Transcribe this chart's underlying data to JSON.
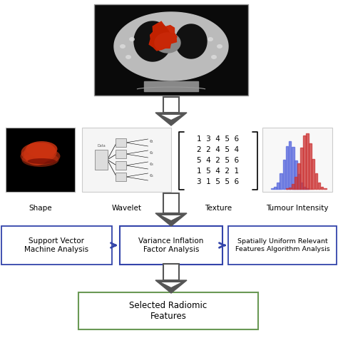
{
  "bg_color": "#f0f0f0",
  "box_color_vif": "#3344aa",
  "box_color_svm": "#3344aa",
  "box_color_surfa": "#3344aa",
  "box_color_selected": "#6a9955",
  "horiz_arrow_color": "#3344aa",
  "text_vif": "Variance Inflation\nFactor Analysis",
  "text_svm": "Support Vector\nMachine Analysis",
  "text_surfa": "Spatially Uniform Relevant\nFeatures Algorithm Analysis",
  "text_selected": "Selected Radiomic\nFeatures",
  "matrix_rows": [
    "1  3  4  5  6",
    "2  2  4  5  4",
    "5  4  2  5  6",
    "1  5  4  2  1",
    "3  1  5  5  6"
  ],
  "labels_row2": [
    "Shape",
    "Wavelet",
    "Texture",
    "Tumour Intensity"
  ]
}
